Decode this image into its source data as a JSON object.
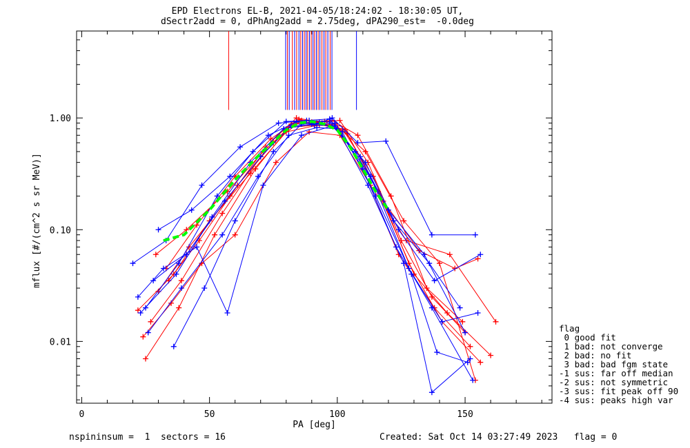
{
  "titles": {
    "line1": "EPD Electrons EL-B, 2021-04-05/18:24:02 - 18:30:05 UT,",
    "line2": "dSectr2add = 0, dPhAng2add = 2.75deg, dPA290_est=  -0.0deg"
  },
  "footer": {
    "left": "nspininsum =  1  sectors = 16",
    "right": "Created: Sat Oct 14 03:27:49 2023   flag = 0"
  },
  "legend": {
    "title": "flag",
    "items": [
      " 0 good fit",
      " 1 bad: not converge",
      " 2 bad: no fit",
      " 3 bad: bad fgm state",
      "-1 sus: far off median",
      "-2 sus: not symmetric",
      "-3 sus: fit peak off 90",
      "-4 sus: peaks high var"
    ]
  },
  "colors": {
    "red": "#ff0000",
    "blue": "#0000ff",
    "green": "#00ff00",
    "axis": "#000000"
  },
  "chart_data": {
    "type": "line",
    "xlabel": "PA [deg]",
    "ylabel": "mflux [#/(cm^2 s sr MeV)]",
    "xlim": [
      -2,
      184
    ],
    "ylim": [
      0.0028,
      6.0
    ],
    "yscale": "log",
    "xticks": [
      0,
      50,
      100,
      150
    ],
    "xtick_labels": [
      "0",
      "50",
      "100",
      "150"
    ],
    "yticks": [
      0.01,
      0.1,
      1.0
    ],
    "ytick_labels": [
      "0.01",
      "0.10",
      "1.00"
    ],
    "marker": "+",
    "series": [
      {
        "color": "red",
        "x": [
          30,
          42,
          58,
          72,
          84,
          93,
          101,
          112,
          125,
          137,
          150
        ],
        "y": [
          0.028,
          0.07,
          0.2,
          0.55,
          1.0,
          0.92,
          0.95,
          0.4,
          0.08,
          0.025,
          0.012
        ]
      },
      {
        "color": "red",
        "x": [
          27,
          39,
          55,
          70,
          82,
          92,
          100,
          110,
          124,
          138,
          152
        ],
        "y": [
          0.015,
          0.035,
          0.14,
          0.45,
          0.88,
          0.9,
          0.85,
          0.35,
          0.06,
          0.02,
          0.009
        ]
      },
      {
        "color": "red",
        "x": [
          25,
          38,
          52,
          68,
          81,
          93,
          102,
          114,
          128,
          141,
          156
        ],
        "y": [
          0.007,
          0.02,
          0.09,
          0.35,
          0.82,
          0.87,
          0.8,
          0.3,
          0.05,
          0.015,
          0.0065
        ]
      },
      {
        "color": "red",
        "x": [
          33,
          45,
          60,
          74,
          85,
          94,
          103,
          116,
          130,
          143,
          160
        ],
        "y": [
          0.045,
          0.11,
          0.3,
          0.65,
          0.97,
          0.9,
          0.78,
          0.22,
          0.04,
          0.018,
          0.0075
        ]
      },
      {
        "color": "red",
        "x": [
          22,
          36,
          50,
          66,
          80,
          91,
          99,
          111,
          126,
          140,
          154
        ],
        "y": [
          0.019,
          0.04,
          0.12,
          0.32,
          0.75,
          0.85,
          0.88,
          0.5,
          0.12,
          0.05,
          0.0045
        ]
      },
      {
        "color": "red",
        "x": [
          29,
          41,
          57,
          71,
          83,
          90,
          98,
          108,
          121,
          135,
          149
        ],
        "y": [
          0.06,
          0.1,
          0.22,
          0.5,
          0.9,
          0.92,
          0.95,
          0.7,
          0.2,
          0.03,
          0.015
        ]
      },
      {
        "color": "red",
        "x": [
          24,
          35,
          47,
          60,
          76,
          89,
          101,
          113,
          127,
          144,
          162
        ],
        "y": [
          0.011,
          0.022,
          0.05,
          0.09,
          0.4,
          0.75,
          0.7,
          0.25,
          0.08,
          0.06,
          0.015
        ]
      },
      {
        "color": "red",
        "x": [
          34,
          46,
          61,
          75,
          86,
          95,
          104,
          118,
          132,
          146,
          155
        ],
        "y": [
          0.035,
          0.08,
          0.25,
          0.6,
          0.95,
          0.93,
          0.72,
          0.18,
          0.065,
          0.045,
          0.055
        ]
      },
      {
        "color": "blue",
        "x": [
          20,
          33,
          47,
          62,
          77,
          88,
          97,
          107,
          120,
          134,
          150
        ],
        "y": [
          0.05,
          0.08,
          0.25,
          0.55,
          0.9,
          0.95,
          0.98,
          0.5,
          0.15,
          0.06,
          0.012
        ]
      },
      {
        "color": "blue",
        "x": [
          23,
          37,
          51,
          66,
          79,
          90,
          99,
          110,
          123,
          137,
          153
        ],
        "y": [
          0.018,
          0.04,
          0.13,
          0.4,
          0.8,
          0.88,
          0.9,
          0.35,
          0.07,
          0.02,
          0.0045
        ]
      },
      {
        "color": "blue",
        "x": [
          26,
          39,
          55,
          69,
          81,
          92,
          100,
          112,
          126,
          137,
          152
        ],
        "y": [
          0.012,
          0.03,
          0.09,
          0.3,
          0.7,
          0.82,
          0.8,
          0.25,
          0.05,
          0.0035,
          0.007
        ]
      },
      {
        "color": "blue",
        "x": [
          30,
          43,
          58,
          73,
          84,
          93,
          98,
          108,
          119,
          137,
          154
        ],
        "y": [
          0.1,
          0.15,
          0.3,
          0.7,
          0.92,
          0.9,
          1.0,
          0.6,
          0.62,
          0.09,
          0.09
        ]
      },
      {
        "color": "blue",
        "x": [
          28,
          41,
          56,
          70,
          82,
          91,
          99,
          113,
          128,
          141,
          155
        ],
        "y": [
          0.035,
          0.06,
          0.18,
          0.45,
          0.85,
          0.87,
          0.85,
          0.3,
          0.045,
          0.015,
          0.018
        ]
      },
      {
        "color": "blue",
        "x": [
          36,
          48,
          60,
          75,
          86,
          94,
          102,
          115,
          129,
          139,
          151
        ],
        "y": [
          0.009,
          0.03,
          0.12,
          0.5,
          0.88,
          0.9,
          0.75,
          0.2,
          0.04,
          0.008,
          0.0065
        ]
      },
      {
        "color": "blue",
        "x": [
          22,
          32,
          45,
          57,
          71,
          86,
          98,
          111,
          124,
          138,
          156
        ],
        "y": [
          0.025,
          0.045,
          0.07,
          0.018,
          0.25,
          0.7,
          0.85,
          0.4,
          0.1,
          0.035,
          0.06
        ]
      },
      {
        "color": "blue",
        "x": [
          25,
          38,
          53,
          67,
          80,
          89,
          97,
          109,
          122,
          136,
          148
        ],
        "y": [
          0.02,
          0.05,
          0.2,
          0.5,
          0.93,
          0.95,
          0.92,
          0.45,
          0.12,
          0.05,
          0.02
        ]
      }
    ],
    "median_curve": {
      "color": "green",
      "x": [
        32,
        40,
        50,
        60,
        70,
        80,
        85,
        90,
        95,
        100,
        105,
        110,
        115,
        120
      ],
      "y": [
        0.08,
        0.09,
        0.15,
        0.28,
        0.48,
        0.78,
        0.9,
        0.93,
        0.88,
        0.78,
        0.55,
        0.35,
        0.22,
        0.15
      ]
    },
    "vertical_markers": [
      {
        "color": "red",
        "x": 57.5
      },
      {
        "color": "red",
        "x": 80.5
      },
      {
        "color": "blue",
        "x": 79.8
      },
      {
        "color": "blue",
        "x": 81.2
      },
      {
        "color": "red",
        "x": 82.4
      },
      {
        "color": "blue",
        "x": 83.3
      },
      {
        "color": "red",
        "x": 84.1
      },
      {
        "color": "blue",
        "x": 85.0
      },
      {
        "color": "red",
        "x": 85.7
      },
      {
        "color": "blue",
        "x": 86.4
      },
      {
        "color": "red",
        "x": 87.1
      },
      {
        "color": "blue",
        "x": 87.8
      },
      {
        "color": "red",
        "x": 88.4
      },
      {
        "color": "blue",
        "x": 89.1
      },
      {
        "color": "red",
        "x": 89.8
      },
      {
        "color": "blue",
        "x": 90.5
      },
      {
        "color": "red",
        "x": 91.1
      },
      {
        "color": "blue",
        "x": 91.8
      },
      {
        "color": "red",
        "x": 92.5
      },
      {
        "color": "blue",
        "x": 93.2
      },
      {
        "color": "red",
        "x": 94.0
      },
      {
        "color": "blue",
        "x": 94.8
      },
      {
        "color": "red",
        "x": 95.5
      },
      {
        "color": "blue",
        "x": 96.3
      },
      {
        "color": "red",
        "x": 97.2
      },
      {
        "color": "blue",
        "x": 97.9
      },
      {
        "color": "blue",
        "x": 107.5
      }
    ]
  }
}
